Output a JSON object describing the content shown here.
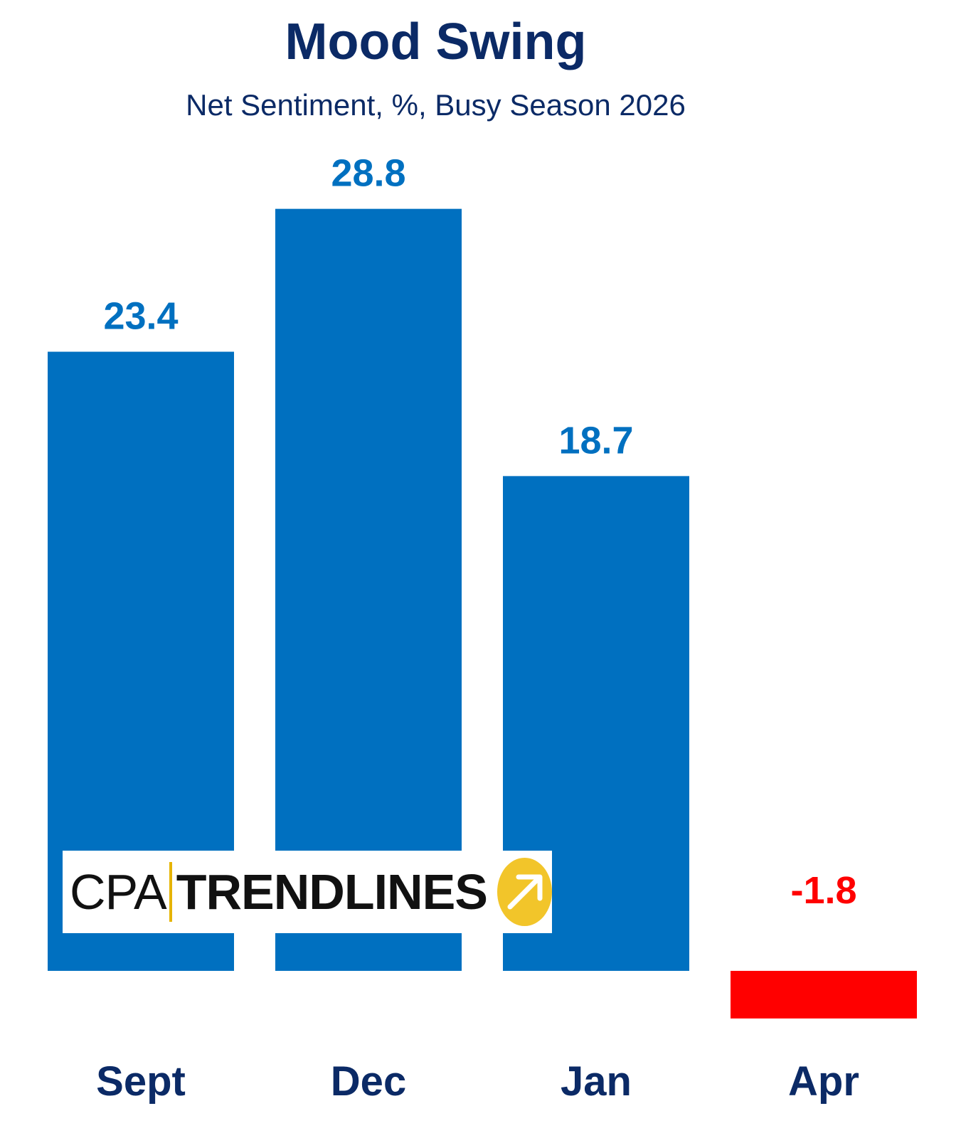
{
  "chart_data": {
    "type": "bar",
    "title": "Mood Swing",
    "subtitle": "Net Sentiment, %, Busy Season 2026",
    "categories": [
      "Sept",
      "Dec",
      "Jan",
      "Apr"
    ],
    "values": [
      23.4,
      28.8,
      18.7,
      -1.8
    ],
    "data_labels": [
      "23.4",
      "28.8",
      "18.7",
      "-1.8"
    ],
    "xlabel": "",
    "ylabel": "",
    "ylim": [
      -1.8,
      28.8
    ],
    "grid": false,
    "legend": "none",
    "colors": {
      "positive": "#0070c0",
      "negative": "#ff0000",
      "text": "#0b2a66"
    }
  },
  "logo": {
    "cpa": "CPA",
    "trendlines": "TRENDLINES",
    "icon": "arrow-up-right-icon"
  }
}
